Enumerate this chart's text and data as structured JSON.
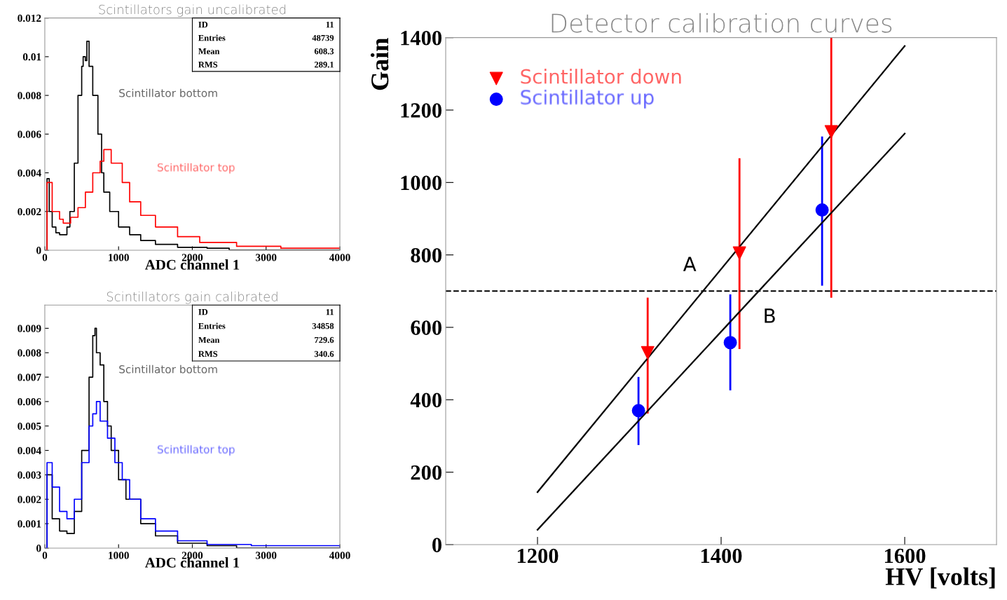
{
  "chart_data": [
    {
      "type": "step",
      "title": "Scintillators gain uncalibrated",
      "xlabel": "ADC channel 1",
      "xlim": [
        0,
        4000
      ],
      "xticks": [
        0,
        1000,
        2000,
        3000,
        4000
      ],
      "ylim": [
        0,
        0.012
      ],
      "yticks": [
        0,
        0.002,
        0.004,
        0.006,
        0.008,
        0.01,
        0.012
      ],
      "grid": false,
      "legend": false,
      "annotations": [
        "ID",
        "11",
        "Entries",
        "48739",
        "Mean",
        "608.3",
        "RMS",
        "289.1"
      ],
      "series": [
        {
          "name": "Scintillator bottom",
          "color": "#000000",
          "x": [
            20,
            30,
            60,
            100,
            150,
            200,
            250,
            300,
            340,
            400,
            450,
            500,
            520,
            550,
            570,
            600,
            650,
            720,
            770,
            800,
            880,
            1000,
            1150,
            1300,
            1500,
            1800,
            2200,
            2500,
            4000
          ],
          "values": [
            0,
            0.0037,
            0.002,
            0.0012,
            0.0009,
            0.0008,
            0.0008,
            0.0012,
            0.002,
            0.0045,
            0.008,
            0.0095,
            0.01,
            0.0098,
            0.0108,
            0.0095,
            0.008,
            0.006,
            0.004,
            0.003,
            0.002,
            0.0012,
            0.0008,
            0.0005,
            0.0003,
            0.00015,
            0.0001,
            0,
            0
          ]
        },
        {
          "name": "Scintillator top",
          "color": "#ff0000",
          "x": [
            20,
            30,
            100,
            200,
            250,
            350,
            450,
            550,
            650,
            750,
            800,
            900,
            1050,
            1150,
            1300,
            1500,
            1800,
            2100,
            2600,
            3200,
            3900,
            4000
          ],
          "values": [
            0,
            0.0035,
            0.002,
            0.0016,
            0.0014,
            0.0017,
            0.0022,
            0.003,
            0.004,
            0.0046,
            0.0052,
            0.0045,
            0.0035,
            0.0025,
            0.0018,
            0.0012,
            0.0007,
            0.0004,
            0.0002,
            0.0001,
            0.0001,
            0.0001
          ]
        }
      ]
    },
    {
      "type": "step",
      "title": "Scintillators gain calibrated",
      "xlabel": "ADC channel 1",
      "xlim": [
        0,
        4000
      ],
      "xticks": [
        0,
        1000,
        2000,
        3000,
        4000
      ],
      "ylim": [
        0,
        0.00995
      ],
      "yticks": [
        0,
        0.001,
        0.002,
        0.003,
        0.004,
        0.005,
        0.006,
        0.007,
        0.008,
        0.009
      ],
      "grid": false,
      "legend": false,
      "annotations": [
        "ID",
        "11",
        "Entries",
        "34858",
        "Mean",
        "729.6",
        "RMS",
        "340.6"
      ],
      "series": [
        {
          "name": "Scintillator bottom",
          "color": "#000000",
          "x": [
            20,
            30,
            100,
            200,
            300,
            400,
            500,
            600,
            650,
            680,
            700,
            750,
            800,
            850,
            900,
            1000,
            1100,
            1300,
            1500,
            1800,
            2200,
            2600,
            4000
          ],
          "values": [
            0,
            0.003,
            0.0012,
            0.0007,
            0.0006,
            0.0015,
            0.004,
            0.007,
            0.0087,
            0.009,
            0.008,
            0.0075,
            0.006,
            0.005,
            0.004,
            0.0028,
            0.002,
            0.001,
            0.0005,
            0.0002,
            0.0001,
            0,
            0
          ]
        },
        {
          "name": "Scintillator top",
          "color": "#0000ff",
          "x": [
            20,
            30,
            100,
            200,
            300,
            400,
            500,
            600,
            650,
            700,
            750,
            850,
            950,
            1050,
            1150,
            1300,
            1500,
            1800,
            2200,
            2800,
            3500,
            4000
          ],
          "values": [
            0,
            0.0035,
            0.0025,
            0.0015,
            0.0012,
            0.002,
            0.0035,
            0.005,
            0.0055,
            0.006,
            0.0052,
            0.0045,
            0.0035,
            0.0028,
            0.002,
            0.0012,
            0.0007,
            0.0003,
            0.00015,
            0.0001,
            0.0001,
            0
          ]
        }
      ]
    },
    {
      "type": "scatter",
      "title": "Detector calibration curves",
      "xlabel": "HV [volts]",
      "ylabel": "Gain",
      "xlim": [
        1100,
        1700
      ],
      "xticks": [
        1200,
        1400,
        1600
      ],
      "ylim": [
        0,
        1400
      ],
      "yticks": [
        0,
        200,
        400,
        600,
        800,
        1000,
        1200,
        1400
      ],
      "grid": false,
      "legend": "top left",
      "annotations": [
        "A",
        "B"
      ],
      "ref_lines": [
        {
          "axis": "y",
          "value": 700,
          "color": "#000000",
          "line_style": "dashed"
        }
      ],
      "series": [
        {
          "name": "Scintillator down",
          "color": "#ff0000",
          "marker": "triangle",
          "x": [
            1320,
            1420,
            1520
          ],
          "values": [
            530,
            805,
            1140
          ],
          "errors": [
            [
              362,
              682
            ],
            [
              540,
              1067
            ],
            [
              682,
              1400
            ]
          ]
        },
        {
          "name": "Scintillator up",
          "color": "#0000ff",
          "marker": "circle",
          "x": [
            1310,
            1410,
            1510
          ],
          "values": [
            370,
            558,
            924
          ],
          "errors": [
            [
              275,
              463
            ],
            [
              426,
              691
            ],
            [
              715,
              1127
            ]
          ]
        },
        {
          "type": "line",
          "color": "#000000",
          "marker": "none",
          "x": [
            1200,
            1600
          ],
          "values": [
            145,
            1377
          ]
        },
        {
          "type": "line",
          "color": "#000000",
          "marker": "none",
          "x": [
            1200,
            1600
          ],
          "values": [
            41,
            1135
          ]
        }
      ]
    }
  ]
}
